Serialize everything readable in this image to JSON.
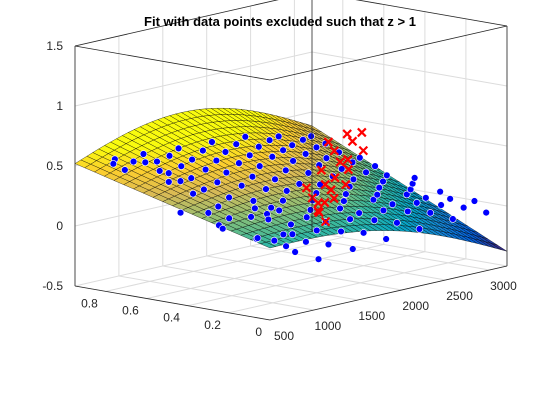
{
  "chart_data": {
    "type": "3d-surface-scatter",
    "title": "Fit with data points excluded such that z > 1",
    "xlabel": "",
    "ylabel": "",
    "zlabel": "",
    "xlim": [
      500,
      3200
    ],
    "ylim": [
      0,
      0.95
    ],
    "zlim": [
      -0.5,
      1.5
    ],
    "x_ticks": [
      500,
      1000,
      1500,
      2000,
      2500,
      3000
    ],
    "x_tick_labels": [
      "500",
      "1000",
      "1500",
      "2000",
      "2500",
      "3000"
    ],
    "y_ticks": [
      0,
      0.2,
      0.4,
      0.6,
      0.8
    ],
    "y_tick_labels": [
      "0",
      "0.2",
      "0.4",
      "0.6",
      "0.8"
    ],
    "z_ticks": [
      -0.5,
      0,
      0.5,
      1,
      1.5
    ],
    "z_tick_labels": [
      "-0.5",
      "0",
      "0.5",
      "1",
      "1.5"
    ],
    "grid": true,
    "box": true,
    "colormap": "parula",
    "surface_grid": {
      "nx": 40,
      "ny": 20
    },
    "colors": {
      "included_points": "#0000ff",
      "excluded_points": "#ff0000",
      "axes_background": "#ffffff",
      "grid_lines": "#dcdcdc",
      "axis_lines": "#262626",
      "surface_edges": "#000000"
    },
    "series": [
      {
        "marker": "circle",
        "color": "#0000ff",
        "points": [
          [
            560,
            0.02,
            0.42
          ],
          [
            600,
            0.75,
            0.51
          ],
          [
            620,
            0.3,
            0.18
          ],
          [
            650,
            0.5,
            0.22
          ],
          [
            700,
            0.1,
            0.32
          ],
          [
            720,
            0.85,
            0.55
          ],
          [
            750,
            0.6,
            0.43
          ],
          [
            780,
            0.35,
            0.11
          ],
          [
            800,
            0.05,
            0.05
          ],
          [
            820,
            0.9,
            0.48
          ],
          [
            850,
            0.45,
            0.2
          ],
          [
            880,
            0.7,
            0.47
          ],
          [
            900,
            0.15,
            0.05
          ],
          [
            910,
            0.55,
            0.32
          ],
          [
            930,
            0.25,
            0.03
          ],
          [
            950,
            0.8,
            0.5
          ],
          [
            970,
            0.4,
            0.15
          ],
          [
            1000,
            0.65,
            0.38
          ],
          [
            1020,
            0.1,
            -0.05
          ],
          [
            1050,
            0.9,
            0.46
          ],
          [
            1060,
            0.3,
            0.0
          ],
          [
            1080,
            0.5,
            0.2
          ],
          [
            1100,
            0.75,
            0.4
          ],
          [
            1120,
            0.2,
            0.05
          ],
          [
            1150,
            0.6,
            0.3
          ],
          [
            1170,
            0.05,
            -0.12
          ],
          [
            1200,
            0.85,
            0.45
          ],
          [
            1220,
            0.4,
            0.12
          ],
          [
            1240,
            0.7,
            0.35
          ],
          [
            1260,
            0.15,
            -0.02
          ],
          [
            1280,
            0.95,
            0.47
          ],
          [
            1300,
            0.35,
            0.1
          ],
          [
            1320,
            0.55,
            0.22
          ],
          [
            1340,
            0.25,
            0.0
          ],
          [
            1360,
            0.8,
            0.4
          ],
          [
            1380,
            0.45,
            0.15
          ],
          [
            1400,
            0.1,
            -0.05
          ],
          [
            1420,
            0.65,
            0.3
          ],
          [
            1440,
            0.3,
            0.05
          ],
          [
            1460,
            0.9,
            0.44
          ],
          [
            1480,
            0.5,
            0.18
          ],
          [
            1500,
            0.2,
            0.02
          ],
          [
            1520,
            0.75,
            0.36
          ],
          [
            1540,
            0.4,
            0.12
          ],
          [
            1560,
            0.05,
            -0.1
          ],
          [
            1580,
            0.6,
            0.26
          ],
          [
            1600,
            0.85,
            0.4
          ],
          [
            1620,
            0.3,
            0.08
          ],
          [
            1640,
            0.7,
            0.33
          ],
          [
            1660,
            0.15,
            0.0
          ],
          [
            1680,
            0.95,
            0.45
          ],
          [
            1700,
            0.45,
            0.16
          ],
          [
            1720,
            0.25,
            0.04
          ],
          [
            1740,
            0.55,
            0.22
          ],
          [
            1760,
            0.8,
            0.38
          ],
          [
            1780,
            0.35,
            0.1
          ],
          [
            1800,
            0.1,
            -0.02
          ],
          [
            1820,
            0.65,
            0.28
          ],
          [
            1840,
            0.9,
            0.42
          ],
          [
            1860,
            0.5,
            0.2
          ],
          [
            1880,
            0.2,
            0.05
          ],
          [
            1900,
            0.75,
            0.35
          ],
          [
            1920,
            0.4,
            0.14
          ],
          [
            1940,
            0.05,
            -0.08
          ],
          [
            1960,
            0.6,
            0.25
          ],
          [
            1980,
            0.85,
            0.4
          ],
          [
            2000,
            0.3,
            0.09
          ],
          [
            2020,
            0.7,
            0.32
          ],
          [
            2040,
            0.15,
            0.03
          ],
          [
            2060,
            0.95,
            0.44
          ],
          [
            2080,
            0.45,
            0.16
          ],
          [
            2100,
            0.25,
            0.05
          ],
          [
            2120,
            0.55,
            0.2
          ],
          [
            2140,
            0.8,
            0.36
          ],
          [
            2160,
            0.35,
            0.11
          ],
          [
            2180,
            0.1,
            0.0
          ],
          [
            2200,
            0.65,
            0.27
          ],
          [
            2220,
            0.9,
            0.41
          ],
          [
            2240,
            0.5,
            0.19
          ],
          [
            2260,
            0.2,
            0.06
          ],
          [
            2280,
            0.75,
            0.34
          ],
          [
            2300,
            0.4,
            0.13
          ],
          [
            2320,
            0.05,
            -0.06
          ],
          [
            2340,
            0.6,
            0.24
          ],
          [
            2360,
            0.85,
            0.38
          ],
          [
            2380,
            0.3,
            0.1
          ],
          [
            2400,
            0.7,
            0.3
          ],
          [
            2420,
            0.15,
            0.04
          ],
          [
            2440,
            0.95,
            0.42
          ],
          [
            2460,
            0.45,
            0.15
          ],
          [
            2480,
            0.25,
            0.06
          ],
          [
            2500,
            0.55,
            0.2
          ],
          [
            2520,
            0.8,
            0.34
          ],
          [
            2540,
            0.35,
            0.1
          ],
          [
            2560,
            0.1,
            0.02
          ],
          [
            2580,
            0.65,
            0.25
          ],
          [
            2600,
            0.9,
            0.38
          ],
          [
            2620,
            0.5,
            0.17
          ],
          [
            2640,
            0.2,
            0.06
          ],
          [
            2660,
            0.75,
            0.3
          ],
          [
            2680,
            0.4,
            0.12
          ],
          [
            2700,
            0.05,
            -0.04
          ],
          [
            2720,
            0.6,
            0.21
          ],
          [
            2740,
            0.85,
            0.33
          ],
          [
            2760,
            0.3,
            0.08
          ],
          [
            2780,
            0.7,
            0.26
          ],
          [
            2800,
            0.15,
            0.03
          ],
          [
            2820,
            0.95,
            0.36
          ],
          [
            2840,
            0.45,
            0.13
          ],
          [
            2860,
            0.25,
            0.05
          ],
          [
            2880,
            0.55,
            0.17
          ],
          [
            2900,
            0.8,
            0.3
          ],
          [
            2920,
            0.35,
            0.08
          ],
          [
            2940,
            0.1,
            0.0
          ],
          [
            2960,
            0.65,
            0.21
          ],
          [
            2980,
            0.9,
            0.32
          ],
          [
            3000,
            0.5,
            0.14
          ],
          [
            3020,
            0.2,
            0.03
          ],
          [
            3040,
            0.75,
            0.25
          ],
          [
            3060,
            0.4,
            0.09
          ],
          [
            3080,
            0.05,
            -0.05
          ],
          [
            3100,
            0.6,
            0.17
          ],
          [
            3120,
            0.85,
            0.28
          ],
          [
            3140,
            0.3,
            0.04
          ],
          [
            3160,
            0.7,
            0.2
          ],
          [
            3180,
            0.15,
            0.0
          ],
          [
            3190,
            0.95,
            0.3
          ],
          [
            3200,
            0.45,
            0.1
          ]
        ]
      },
      {
        "marker": "x",
        "color": "#ff0000",
        "points": [
          [
            1250,
            0.05,
            0.18
          ],
          [
            1280,
            0.1,
            0.25
          ],
          [
            1310,
            0.08,
            0.32
          ],
          [
            1340,
            0.12,
            0.22
          ],
          [
            1370,
            0.06,
            0.35
          ],
          [
            1400,
            0.15,
            0.28
          ],
          [
            1430,
            0.1,
            0.4
          ],
          [
            1450,
            0.2,
            0.3
          ],
          [
            1480,
            0.05,
            0.45
          ],
          [
            1500,
            0.25,
            0.36
          ],
          [
            1520,
            0.12,
            0.48
          ],
          [
            1550,
            0.18,
            0.4
          ],
          [
            1580,
            0.08,
            0.55
          ],
          [
            1600,
            0.22,
            0.5
          ],
          [
            1620,
            0.1,
            0.62
          ],
          [
            1650,
            0.15,
            0.58
          ],
          [
            1680,
            0.05,
            0.7
          ],
          [
            1700,
            0.2,
            0.65
          ],
          [
            1720,
            0.12,
            0.75
          ],
          [
            1750,
            0.25,
            0.7
          ],
          [
            1780,
            0.1,
            0.82
          ],
          [
            1800,
            0.18,
            0.78
          ]
        ]
      }
    ]
  }
}
